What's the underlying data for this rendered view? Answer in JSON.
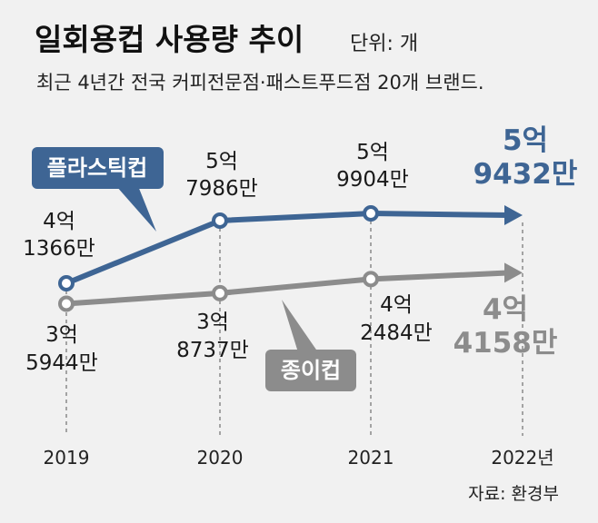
{
  "title": "일회용컵 사용량 추이",
  "unit": "단위: 개",
  "subtitle": "최근 4년간 전국 커피전문점·패스트푸드점 20개 브랜드.",
  "source": "자료: 환경부",
  "colors": {
    "plastic": "#3e6594",
    "paper": "#8c8c8c",
    "background": "#f1f1f1"
  },
  "chart_data": {
    "type": "line",
    "categories": [
      "2019",
      "2020",
      "2021",
      "2022년"
    ],
    "series": [
      {
        "name": "플라스틱컵",
        "values": [
          413660000,
          579860000,
          599040000,
          594320000
        ],
        "labels": [
          [
            "4억",
            "1366만"
          ],
          [
            "5억",
            "7986만"
          ],
          [
            "5억",
            "9904만"
          ],
          [
            "5억",
            "9432만"
          ]
        ]
      },
      {
        "name": "종이컵",
        "values": [
          359440000,
          387370000,
          424840000,
          441580000
        ],
        "labels": [
          [
            "3억",
            "5944만"
          ],
          [
            "3억",
            "8737만"
          ],
          [
            "4억",
            "2484만"
          ],
          [
            "4억",
            "4158만"
          ]
        ]
      }
    ]
  }
}
